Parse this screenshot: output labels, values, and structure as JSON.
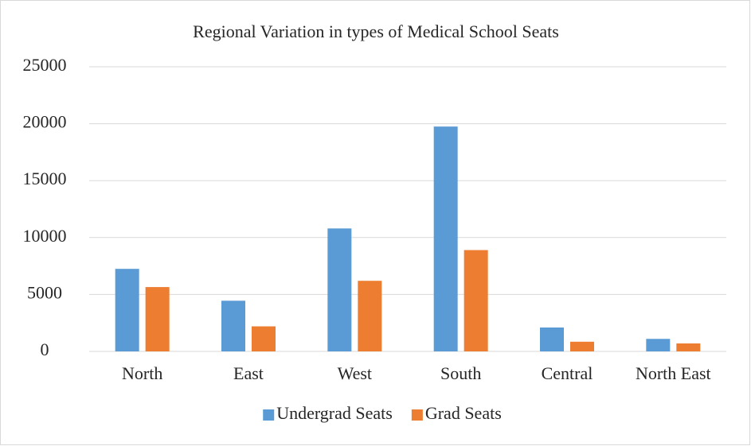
{
  "chart_data": {
    "type": "bar",
    "title": "Regional Variation in types of Medical School Seats",
    "categories": [
      "North",
      "East",
      "West",
      "South",
      "Central",
      "North East"
    ],
    "series": [
      {
        "name": "Undergrad Seats",
        "color": "#5b9bd5",
        "values": [
          7250,
          4450,
          10800,
          19750,
          2100,
          1100
        ]
      },
      {
        "name": "Grad Seats",
        "color": "#ed7d31",
        "values": [
          5650,
          2200,
          6200,
          8900,
          850,
          700
        ]
      }
    ],
    "ylim": [
      0,
      25000
    ],
    "yticks": [
      0,
      5000,
      10000,
      15000,
      20000,
      25000
    ],
    "grid": true,
    "legend": "bottom"
  }
}
